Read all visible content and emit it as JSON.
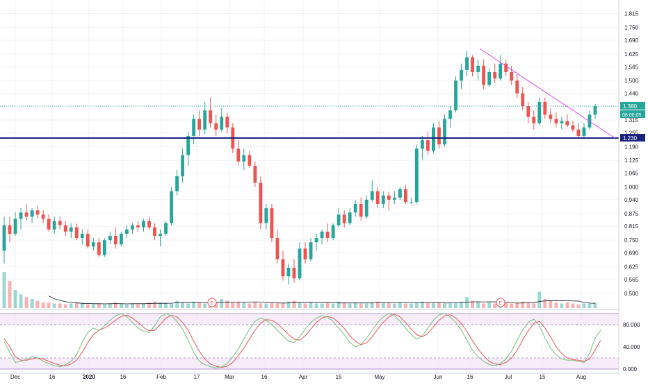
{
  "colors": {
    "background": "#ffffff",
    "grid": "#eef1f5",
    "up": "#26a69a",
    "down": "#ef5350",
    "support_line": "#1a237e",
    "trend_line": "#e040fb",
    "price_tag": "#26a69a",
    "support_tag": "#1a237e",
    "stoch_k": "#66bb6a",
    "stoch_d": "#ef5350",
    "stoch_band": "#f3e5f5",
    "axis_text": "#131722"
  },
  "price_axis": {
    "ticks": [
      "1.815",
      "1.750",
      "1.690",
      "1.625",
      "1.565",
      "1.500",
      "1.440",
      "1.380",
      "1.315",
      "1.255",
      "1.190",
      "1.125",
      "1.065",
      "1.000",
      "0.940",
      "0.875",
      "0.815",
      "0.750",
      "0.690",
      "0.625",
      "0.565",
      "0.500"
    ],
    "last_price_label": "1.380",
    "countdown_label": "08:00:05",
    "support_label": "1.230"
  },
  "time_axis": {
    "labels": [
      "Dec",
      "16",
      "2020",
      "16",
      "Feb",
      "17",
      "Mar",
      "16",
      "Apr",
      "15",
      "May",
      "Jun",
      "16",
      "Jul",
      "15",
      "Aug"
    ]
  },
  "events": {
    "earnings_marker": "E"
  },
  "oscillator": {
    "ticks": [
      "80.000",
      "40.000",
      "0.000"
    ],
    "upper_band": 80,
    "lower_band": 20
  },
  "chart_data": {
    "type": "candlestick",
    "title": "",
    "ylim": [
      0.47,
      1.84
    ],
    "support_level": 1.23,
    "last_price": 1.38,
    "trend_line": {
      "from": {
        "x": "2020-06-18",
        "y": 1.65
      },
      "to": {
        "x": "2020-08-12",
        "y": 1.25
      }
    },
    "volume": [
      0.4,
      0.3,
      0.2,
      0.15,
      0.12,
      0.1,
      0.08,
      0.06,
      0.06,
      0.05,
      0.05,
      0.04,
      0.05,
      0.06,
      0.05,
      0.04,
      0.04,
      0.05,
      0.04,
      0.05,
      0.06,
      0.05,
      0.04,
      0.05,
      0.04,
      0.05,
      0.06,
      0.07,
      0.06,
      0.05,
      0.05,
      0.08,
      0.06,
      0.05,
      0.07,
      0.06,
      0.05,
      0.05,
      0.06,
      0.1,
      0.08,
      0.06,
      0.07,
      0.06,
      0.05,
      0.06,
      0.05,
      0.05,
      0.06,
      0.05,
      0.06,
      0.07,
      0.08,
      0.06,
      0.05,
      0.06,
      0.05,
      0.05,
      0.06,
      0.05,
      0.07,
      0.06,
      0.05,
      0.06,
      0.05,
      0.05,
      0.06,
      0.07,
      0.06,
      0.06,
      0.05,
      0.06,
      0.05,
      0.05,
      0.06,
      0.07,
      0.06,
      0.05,
      0.06,
      0.05,
      0.05,
      0.06,
      0.07,
      0.12,
      0.08,
      0.06,
      0.05,
      0.06,
      0.05,
      0.05,
      0.06,
      0.05,
      0.06,
      0.07,
      0.06,
      0.05,
      0.18,
      0.1,
      0.08,
      0.06,
      0.05,
      0.06,
      0.05,
      0.04,
      0.05,
      0.05,
      0.06,
      0.05,
      0.06,
      0.05,
      0.05,
      0.06,
      0.05,
      0.05,
      0.04,
      0.05,
      0.04,
      0.04,
      0.05,
      0.04,
      0.05,
      0.04,
      0.04,
      0.05,
      0.05,
      0.06
    ],
    "candles": [
      [
        0.7,
        0.86,
        0.64,
        0.82
      ],
      [
        0.82,
        0.86,
        0.74,
        0.78
      ],
      [
        0.78,
        0.88,
        0.77,
        0.85
      ],
      [
        0.85,
        0.9,
        0.8,
        0.88
      ],
      [
        0.88,
        0.92,
        0.84,
        0.86
      ],
      [
        0.86,
        0.9,
        0.83,
        0.89
      ],
      [
        0.89,
        0.91,
        0.85,
        0.87
      ],
      [
        0.87,
        0.89,
        0.83,
        0.85
      ],
      [
        0.85,
        0.87,
        0.79,
        0.8
      ],
      [
        0.8,
        0.86,
        0.78,
        0.84
      ],
      [
        0.84,
        0.86,
        0.8,
        0.82
      ],
      [
        0.82,
        0.84,
        0.77,
        0.79
      ],
      [
        0.79,
        0.83,
        0.76,
        0.81
      ],
      [
        0.81,
        0.83,
        0.75,
        0.76
      ],
      [
        0.76,
        0.8,
        0.73,
        0.78
      ],
      [
        0.78,
        0.8,
        0.71,
        0.72
      ],
      [
        0.72,
        0.76,
        0.7,
        0.74
      ],
      [
        0.74,
        0.76,
        0.67,
        0.68
      ],
      [
        0.68,
        0.76,
        0.67,
        0.75
      ],
      [
        0.75,
        0.79,
        0.73,
        0.77
      ],
      [
        0.77,
        0.81,
        0.71,
        0.73
      ],
      [
        0.73,
        0.79,
        0.72,
        0.78
      ],
      [
        0.78,
        0.82,
        0.76,
        0.8
      ],
      [
        0.8,
        0.83,
        0.78,
        0.82
      ],
      [
        0.82,
        0.84,
        0.79,
        0.81
      ],
      [
        0.81,
        0.85,
        0.79,
        0.84
      ],
      [
        0.84,
        0.86,
        0.8,
        0.81
      ],
      [
        0.81,
        0.83,
        0.75,
        0.77
      ],
      [
        0.77,
        0.8,
        0.72,
        0.78
      ],
      [
        0.78,
        0.84,
        0.77,
        0.83
      ],
      [
        0.83,
        1.0,
        0.82,
        0.98
      ],
      [
        0.98,
        1.08,
        0.96,
        1.05
      ],
      [
        1.05,
        1.18,
        1.02,
        1.15
      ],
      [
        1.15,
        1.26,
        1.1,
        1.24
      ],
      [
        1.24,
        1.34,
        1.2,
        1.32
      ],
      [
        1.32,
        1.36,
        1.24,
        1.27
      ],
      [
        1.27,
        1.4,
        1.25,
        1.36
      ],
      [
        1.36,
        1.42,
        1.28,
        1.3
      ],
      [
        1.3,
        1.34,
        1.24,
        1.27
      ],
      [
        1.27,
        1.37,
        1.26,
        1.33
      ],
      [
        1.33,
        1.35,
        1.25,
        1.28
      ],
      [
        1.28,
        1.3,
        1.16,
        1.18
      ],
      [
        1.18,
        1.22,
        1.1,
        1.12
      ],
      [
        1.12,
        1.18,
        1.08,
        1.15
      ],
      [
        1.15,
        1.17,
        1.09,
        1.1
      ],
      [
        1.1,
        1.12,
        1.0,
        1.02
      ],
      [
        1.02,
        1.05,
        0.8,
        0.83
      ],
      [
        0.83,
        0.92,
        0.8,
        0.9
      ],
      [
        0.9,
        0.92,
        0.74,
        0.76
      ],
      [
        0.76,
        0.8,
        0.64,
        0.66
      ],
      [
        0.66,
        0.7,
        0.56,
        0.58
      ],
      [
        0.58,
        0.64,
        0.54,
        0.62
      ],
      [
        0.62,
        0.66,
        0.55,
        0.57
      ],
      [
        0.57,
        0.74,
        0.56,
        0.71
      ],
      [
        0.71,
        0.74,
        0.64,
        0.66
      ],
      [
        0.66,
        0.76,
        0.65,
        0.74
      ],
      [
        0.74,
        0.78,
        0.7,
        0.76
      ],
      [
        0.76,
        0.8,
        0.73,
        0.79
      ],
      [
        0.79,
        0.83,
        0.74,
        0.76
      ],
      [
        0.76,
        0.83,
        0.75,
        0.82
      ],
      [
        0.82,
        0.9,
        0.81,
        0.87
      ],
      [
        0.87,
        0.89,
        0.81,
        0.83
      ],
      [
        0.83,
        0.9,
        0.82,
        0.88
      ],
      [
        0.88,
        0.94,
        0.86,
        0.92
      ],
      [
        0.92,
        0.95,
        0.84,
        0.86
      ],
      [
        0.86,
        0.96,
        0.85,
        0.94
      ],
      [
        0.94,
        1.03,
        0.93,
        0.98
      ],
      [
        0.98,
        1.0,
        0.9,
        0.92
      ],
      [
        0.92,
        0.98,
        0.9,
        0.96
      ],
      [
        0.96,
        0.98,
        0.89,
        0.94
      ],
      [
        0.94,
        0.98,
        0.92,
        0.95
      ],
      [
        0.95,
        1.0,
        0.94,
        0.99
      ],
      [
        0.99,
        1.01,
        0.92,
        0.93
      ],
      [
        0.93,
        0.95,
        0.92,
        0.93
      ],
      [
        0.93,
        1.2,
        0.92,
        1.18
      ],
      [
        1.18,
        1.24,
        1.13,
        1.22
      ],
      [
        1.22,
        1.26,
        1.15,
        1.17
      ],
      [
        1.17,
        1.3,
        1.16,
        1.28
      ],
      [
        1.28,
        1.31,
        1.18,
        1.2
      ],
      [
        1.2,
        1.34,
        1.19,
        1.32
      ],
      [
        1.32,
        1.38,
        1.28,
        1.36
      ],
      [
        1.36,
        1.52,
        1.35,
        1.5
      ],
      [
        1.5,
        1.58,
        1.46,
        1.55
      ],
      [
        1.55,
        1.64,
        1.52,
        1.61
      ],
      [
        1.61,
        1.62,
        1.52,
        1.54
      ],
      [
        1.54,
        1.6,
        1.5,
        1.57
      ],
      [
        1.57,
        1.6,
        1.46,
        1.48
      ],
      [
        1.48,
        1.56,
        1.47,
        1.54
      ],
      [
        1.54,
        1.58,
        1.49,
        1.51
      ],
      [
        1.51,
        1.62,
        1.5,
        1.58
      ],
      [
        1.58,
        1.6,
        1.52,
        1.54
      ],
      [
        1.54,
        1.57,
        1.48,
        1.5
      ],
      [
        1.5,
        1.53,
        1.42,
        1.44
      ],
      [
        1.44,
        1.47,
        1.36,
        1.38
      ],
      [
        1.38,
        1.4,
        1.3,
        1.33
      ],
      [
        1.33,
        1.36,
        1.27,
        1.3
      ],
      [
        1.3,
        1.42,
        1.29,
        1.4
      ],
      [
        1.4,
        1.42,
        1.32,
        1.34
      ],
      [
        1.34,
        1.37,
        1.3,
        1.32
      ],
      [
        1.32,
        1.35,
        1.28,
        1.3
      ],
      [
        1.3,
        1.33,
        1.27,
        1.31
      ],
      [
        1.31,
        1.34,
        1.28,
        1.29
      ],
      [
        1.29,
        1.31,
        1.26,
        1.27
      ],
      [
        1.27,
        1.3,
        1.23,
        1.24
      ],
      [
        1.24,
        1.3,
        1.23,
        1.28
      ],
      [
        1.28,
        1.36,
        1.27,
        1.34
      ],
      [
        1.34,
        1.39,
        1.32,
        1.38
      ]
    ],
    "stochastic": {
      "k": [
        50,
        30,
        12,
        14,
        18,
        22,
        20,
        14,
        10,
        6,
        4,
        8,
        14,
        26,
        48,
        66,
        74,
        70,
        78,
        88,
        96,
        100,
        94,
        84,
        74,
        68,
        66,
        78,
        94,
        100,
        96,
        86,
        72,
        52,
        30,
        14,
        8,
        4,
        2,
        4,
        10,
        22,
        36,
        54,
        72,
        86,
        92,
        88,
        80,
        70,
        60,
        50,
        48,
        58,
        72,
        84,
        92,
        96,
        94,
        86,
        74,
        62,
        48,
        40,
        44,
        56,
        70,
        84,
        94,
        100,
        96,
        86,
        74,
        62,
        54,
        60,
        74,
        88,
        98,
        100,
        94,
        84,
        70,
        52,
        34,
        22,
        14,
        8,
        6,
        10,
        18,
        32,
        52,
        70,
        84,
        90,
        78,
        56,
        38,
        26,
        18,
        16,
        16,
        14,
        12,
        28,
        56,
        70
      ],
      "d": [
        55,
        40,
        22,
        16,
        16,
        18,
        20,
        18,
        14,
        10,
        7,
        6,
        9,
        16,
        30,
        48,
        62,
        70,
        74,
        80,
        88,
        95,
        97,
        92,
        84,
        75,
        69,
        70,
        80,
        92,
        97,
        94,
        84,
        70,
        50,
        32,
        18,
        9,
        5,
        3,
        5,
        12,
        24,
        38,
        54,
        70,
        83,
        89,
        88,
        82,
        72,
        62,
        54,
        52,
        60,
        72,
        84,
        92,
        95,
        92,
        84,
        73,
        60,
        50,
        44,
        47,
        58,
        72,
        84,
        94,
        99,
        94,
        84,
        72,
        62,
        58,
        64,
        76,
        88,
        96,
        98,
        92,
        82,
        68,
        51,
        36,
        24,
        14,
        9,
        8,
        12,
        20,
        34,
        52,
        69,
        82,
        86,
        74,
        58,
        40,
        28,
        20,
        17,
        16,
        14,
        18,
        34,
        52
      ]
    }
  }
}
